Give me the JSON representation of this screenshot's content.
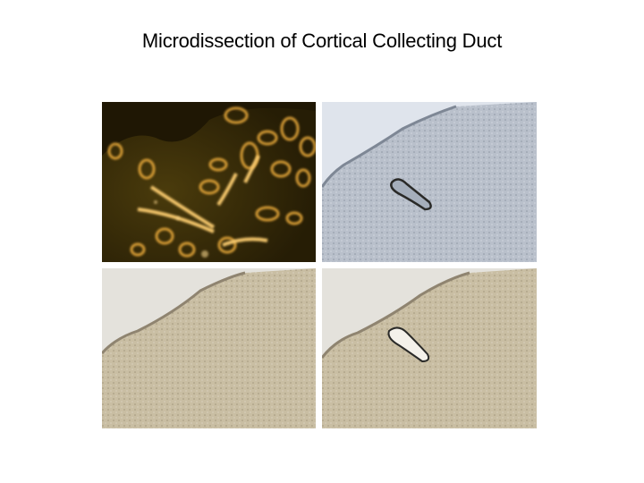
{
  "slide": {
    "title": "Microdissection of Cortical Collecting Duct"
  },
  "panels": [
    {
      "id": "fluorescence-view",
      "style": "dark-field fluorescence"
    },
    {
      "id": "brightfield-before-outlined",
      "style": "blue-tinted brightfield"
    },
    {
      "id": "brightfield-before",
      "style": "sepia brightfield"
    },
    {
      "id": "brightfield-after-dissection",
      "style": "sepia brightfield"
    }
  ],
  "colors": {
    "fluorescence_bg": "#3a2c08",
    "fluorescence_glow": "#e8a93a",
    "blue_bg": "#c2cad6",
    "sepia_bg": "#cfc7b3",
    "outline": "#2a2a28"
  }
}
